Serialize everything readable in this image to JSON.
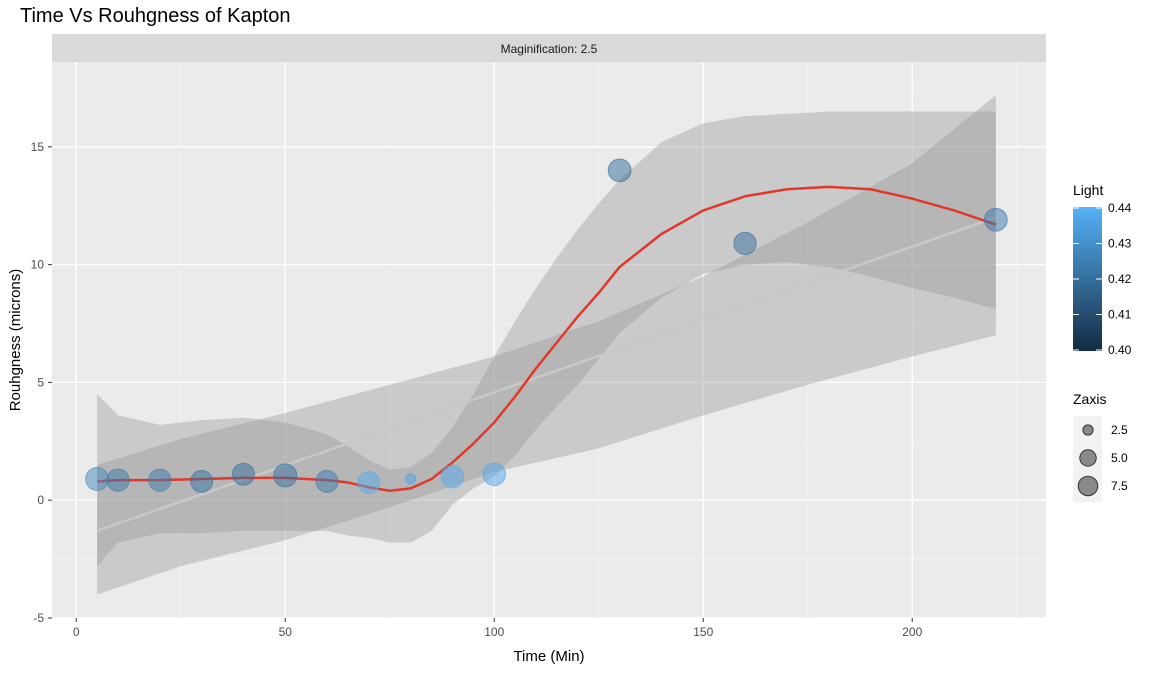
{
  "chart_data": {
    "type": "scatter",
    "title": "Time Vs Rouhgness of Kapton",
    "facet_label": "Maginification: 2.5",
    "xlabel": "Time (Min)",
    "ylabel": "Rouhgness (microns)",
    "xlim": [
      -5.8,
      232
    ],
    "ylim": [
      -5.0,
      18.6
    ],
    "x_ticks": [
      0,
      50,
      100,
      150,
      200
    ],
    "y_ticks": [
      -5,
      0,
      5,
      10,
      15
    ],
    "grid": true,
    "points": [
      {
        "x": 5,
        "y": 0.9,
        "light": 0.428,
        "zaxis": 7.5
      },
      {
        "x": 10,
        "y": 0.85,
        "light": 0.423,
        "zaxis": 7.0
      },
      {
        "x": 20,
        "y": 0.85,
        "light": 0.424,
        "zaxis": 7.0
      },
      {
        "x": 30,
        "y": 0.8,
        "light": 0.421,
        "zaxis": 6.8
      },
      {
        "x": 40,
        "y": 1.1,
        "light": 0.42,
        "zaxis": 6.8
      },
      {
        "x": 50,
        "y": 1.05,
        "light": 0.42,
        "zaxis": 7.6
      },
      {
        "x": 60,
        "y": 0.8,
        "light": 0.424,
        "zaxis": 6.8
      },
      {
        "x": 70,
        "y": 0.75,
        "light": 0.438,
        "zaxis": 6.8
      },
      {
        "x": 80,
        "y": 0.9,
        "light": 0.436,
        "zaxis": 1.0
      },
      {
        "x": 90,
        "y": 1.0,
        "light": 0.438,
        "zaxis": 7.2
      },
      {
        "x": 100,
        "y": 1.1,
        "light": 0.437,
        "zaxis": 7.2
      },
      {
        "x": 130,
        "y": 14.0,
        "light": 0.419,
        "zaxis": 7.4
      },
      {
        "x": 160,
        "y": 10.9,
        "light": 0.42,
        "zaxis": 7.0
      },
      {
        "x": 220,
        "y": 11.9,
        "light": 0.422,
        "zaxis": 7.4
      }
    ],
    "loess_curve": {
      "color": "#e0392b",
      "x": [
        5,
        10,
        20,
        30,
        40,
        50,
        60,
        65,
        70,
        75,
        80,
        85,
        90,
        95,
        100,
        105,
        110,
        115,
        120,
        125,
        130,
        140,
        150,
        160,
        170,
        180,
        190,
        200,
        210,
        220
      ],
      "y": [
        0.8,
        0.85,
        0.85,
        0.9,
        0.95,
        0.95,
        0.85,
        0.75,
        0.55,
        0.4,
        0.5,
        0.9,
        1.6,
        2.4,
        3.3,
        4.4,
        5.6,
        6.7,
        7.8,
        8.8,
        9.9,
        11.3,
        12.3,
        12.9,
        13.2,
        13.3,
        13.2,
        12.8,
        12.3,
        11.7
      ],
      "band_upper": [
        4.5,
        3.6,
        3.2,
        3.4,
        3.5,
        3.3,
        2.8,
        2.3,
        1.7,
        1.3,
        1.4,
        2.0,
        3.1,
        4.5,
        6.1,
        7.6,
        9.0,
        10.3,
        11.5,
        12.6,
        13.6,
        15.2,
        16.0,
        16.3,
        16.4,
        16.5,
        16.5,
        16.5,
        16.5,
        16.5
      ],
      "band_lower": [
        -2.8,
        -1.8,
        -1.4,
        -1.4,
        -1.3,
        -1.3,
        -1.3,
        -1.5,
        -1.6,
        -1.8,
        -1.8,
        -1.3,
        -0.2,
        0.5,
        1.0,
        1.9,
        3.0,
        4.0,
        4.9,
        6.0,
        7.1,
        8.6,
        9.6,
        10.0,
        10.1,
        9.9,
        9.5,
        9.0,
        8.6,
        8.1
      ]
    },
    "linear_fit": {
      "x": [
        5,
        220
      ],
      "y": [
        -1.3,
        12.0
      ],
      "band_upper": [
        1.5,
        17.2
      ],
      "band_lower": [
        -4.0,
        7.0
      ],
      "band_x": [
        5,
        25,
        50,
        75,
        100,
        125,
        150,
        175,
        200,
        220
      ],
      "band_upper_pts": [
        1.5,
        2.6,
        3.7,
        4.9,
        6.1,
        7.6,
        9.5,
        11.8,
        14.3,
        17.2
      ],
      "band_lower_pts": [
        -4.0,
        -2.8,
        -1.7,
        -0.3,
        1.2,
        2.2,
        3.6,
        4.9,
        6.1,
        7.0
      ]
    },
    "legend_light": {
      "title": "Light",
      "range": [
        0.4,
        0.44
      ],
      "ticks": [
        "0.44",
        "0.43",
        "0.42",
        "0.41",
        "0.40"
      ],
      "color_low": "#132b43",
      "color_high": "#56b1f7"
    },
    "legend_zaxis": {
      "title": "Zaxis",
      "labels": [
        "2.5",
        "5.0",
        "7.5"
      ],
      "values": [
        2.5,
        5.0,
        7.5
      ]
    }
  }
}
